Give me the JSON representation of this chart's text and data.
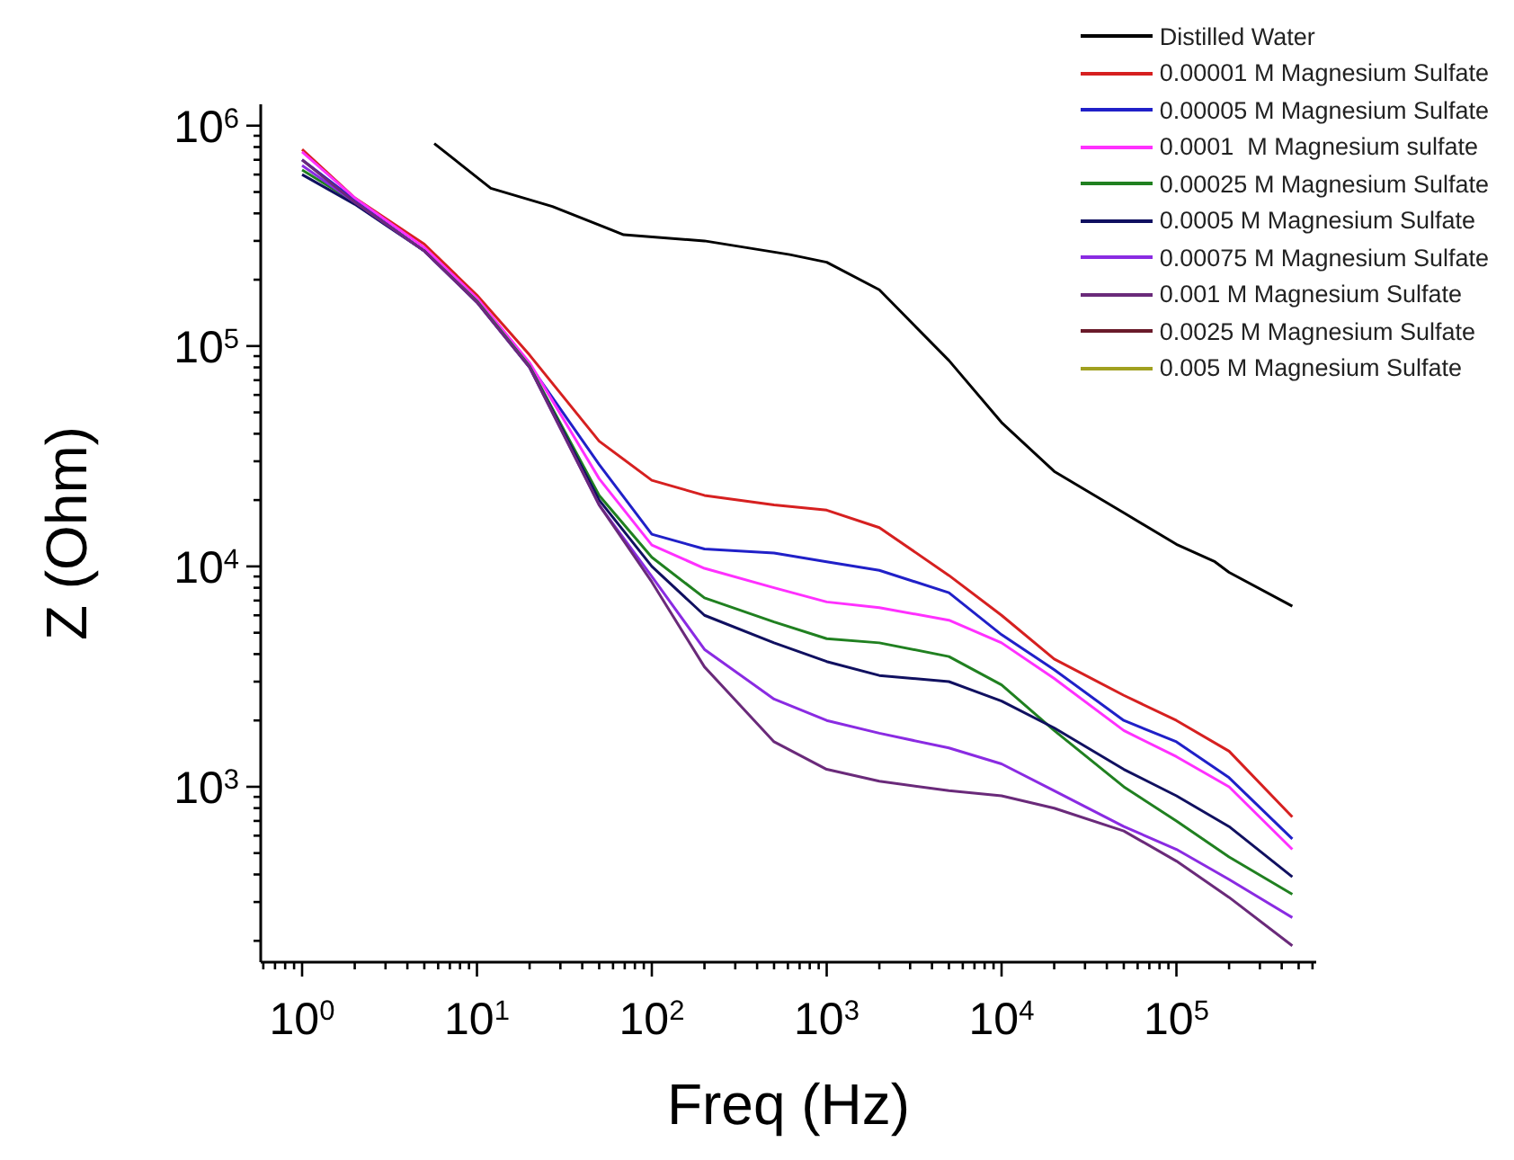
{
  "chart_data": {
    "type": "line",
    "xlabel": "Freq (Hz)",
    "ylabel": "Z (Ohm)",
    "log": "xy",
    "grid": false,
    "legend": "top right",
    "marker": "none",
    "line_style": "solid",
    "x": [
      1,
      2,
      5,
      10,
      20,
      50,
      100,
      200,
      500,
      1000,
      2000,
      5000,
      10000,
      20000,
      50000,
      100000,
      200000,
      460000
    ],
    "xlim": [
      0.58,
      630000
    ],
    "ylim": [
      160,
      1250000
    ],
    "xticks": [
      {
        "value": 0.6,
        "label": null
      },
      {
        "value": 0.7,
        "label": null
      },
      {
        "value": 0.8,
        "label": null
      },
      {
        "value": 0.9,
        "label": null
      },
      {
        "value": 1,
        "label": "10$^{0}$"
      },
      {
        "value": 2,
        "label": null
      },
      {
        "value": 3,
        "label": null
      },
      {
        "value": 4,
        "label": null
      },
      {
        "value": 5,
        "label": null
      },
      {
        "value": 6,
        "label": null
      },
      {
        "value": 7,
        "label": null
      },
      {
        "value": 8,
        "label": null
      },
      {
        "value": 9,
        "label": null
      },
      {
        "value": 10,
        "label": "10$^{1}$"
      },
      {
        "value": 20,
        "label": null
      },
      {
        "value": 30,
        "label": null
      },
      {
        "value": 40,
        "label": null
      },
      {
        "value": 50,
        "label": null
      },
      {
        "value": 60,
        "label": null
      },
      {
        "value": 70,
        "label": null
      },
      {
        "value": 80,
        "label": null
      },
      {
        "value": 90,
        "label": null
      },
      {
        "value": 100,
        "label": "10$^{2}$"
      },
      {
        "value": 200,
        "label": null
      },
      {
        "value": 300,
        "label": null
      },
      {
        "value": 400,
        "label": null
      },
      {
        "value": 500,
        "label": null
      },
      {
        "value": 600,
        "label": null
      },
      {
        "value": 700,
        "label": null
      },
      {
        "value": 800,
        "label": null
      },
      {
        "value": 900,
        "label": null
      },
      {
        "value": 1000,
        "label": "10$^{3}$"
      },
      {
        "value": 2000,
        "label": null
      },
      {
        "value": 3000,
        "label": null
      },
      {
        "value": 4000,
        "label": null
      },
      {
        "value": 5000,
        "label": null
      },
      {
        "value": 6000,
        "label": null
      },
      {
        "value": 7000,
        "label": null
      },
      {
        "value": 8000,
        "label": null
      },
      {
        "value": 9000,
        "label": null
      },
      {
        "value": 10000,
        "label": "10$^{4}$"
      },
      {
        "value": 20000,
        "label": null
      },
      {
        "value": 30000,
        "label": null
      },
      {
        "value": 40000,
        "label": null
      },
      {
        "value": 50000,
        "label": null
      },
      {
        "value": 60000,
        "label": null
      },
      {
        "value": 70000,
        "label": null
      },
      {
        "value": 80000,
        "label": null
      },
      {
        "value": 90000,
        "label": null
      },
      {
        "value": 100000,
        "label": "10$^{5}$"
      },
      {
        "value": 200000,
        "label": null
      },
      {
        "value": 300000,
        "label": null
      },
      {
        "value": 400000,
        "label": null
      },
      {
        "value": 500000,
        "label": null
      },
      {
        "value": 600000,
        "label": null
      }
    ],
    "yticks": [
      {
        "value": 200,
        "label": null
      },
      {
        "value": 300,
        "label": null
      },
      {
        "value": 400,
        "label": null
      },
      {
        "value": 500,
        "label": null
      },
      {
        "value": 600,
        "label": null
      },
      {
        "value": 700,
        "label": null
      },
      {
        "value": 800,
        "label": null
      },
      {
        "value": 900,
        "label": null
      },
      {
        "value": 1000,
        "label": "10$^{3}$"
      },
      {
        "value": 2000,
        "label": null
      },
      {
        "value": 3000,
        "label": null
      },
      {
        "value": 4000,
        "label": null
      },
      {
        "value": 5000,
        "label": null
      },
      {
        "value": 6000,
        "label": null
      },
      {
        "value": 7000,
        "label": null
      },
      {
        "value": 8000,
        "label": null
      },
      {
        "value": 9000,
        "label": null
      },
      {
        "value": 10000,
        "label": "10$^{4}$"
      },
      {
        "value": 20000,
        "label": null
      },
      {
        "value": 30000,
        "label": null
      },
      {
        "value": 40000,
        "label": null
      },
      {
        "value": 50000,
        "label": null
      },
      {
        "value": 60000,
        "label": null
      },
      {
        "value": 70000,
        "label": null
      },
      {
        "value": 80000,
        "label": null
      },
      {
        "value": 90000,
        "label": null
      },
      {
        "value": 100000,
        "label": "10$^{5}$"
      },
      {
        "value": 200000,
        "label": null
      },
      {
        "value": 300000,
        "label": null
      },
      {
        "value": 400000,
        "label": null
      },
      {
        "value": 500000,
        "label": null
      },
      {
        "value": 600000,
        "label": null
      },
      {
        "value": 700000,
        "label": null
      },
      {
        "value": 800000,
        "label": null
      },
      {
        "value": 900000,
        "label": null
      },
      {
        "value": 1000000,
        "label": "10$^{6}$"
      }
    ],
    "series": [
      {
        "name": "Distilled Water",
        "color": "#000000",
        "x": [
          5.7,
          12,
          27,
          69,
          200,
          615,
          1000,
          2000,
          5000,
          10000,
          20000,
          50000,
          100000,
          166000,
          200000,
          460000
        ],
        "values": [
          830000,
          520000,
          430000,
          320000,
          300000,
          260000,
          240000,
          180000,
          86000,
          45000,
          27000,
          17500,
          12600,
          10500,
          9400,
          6600
        ]
      },
      {
        "name": "0.00001 M Magnesium Sulfate",
        "color": "#d62020",
        "values": [
          780000,
          470000,
          290000,
          170000,
          91000,
          37000,
          24600,
          21000,
          19000,
          18000,
          15000,
          9100,
          6000,
          3800,
          2600,
          2000,
          1450,
          730
        ]
      },
      {
        "name": "0.00005 M Magnesium Sulfate",
        "color": "#2020c8",
        "values": [
          700000,
          460000,
          270000,
          160000,
          82000,
          29000,
          14000,
          12000,
          11500,
          10500,
          9600,
          7600,
          4900,
          3400,
          2000,
          1600,
          1100,
          580
        ]
      },
      {
        "name": "0.0001  M Magnesium sulfate",
        "color": "#ff30ff",
        "values": [
          760000,
          470000,
          280000,
          165000,
          84000,
          25000,
          12500,
          9800,
          8000,
          6900,
          6500,
          5700,
          4500,
          3100,
          1800,
          1370,
          1000,
          520
        ]
      },
      {
        "name": "0.00025 M Magnesium Sulfate",
        "color": "#208020",
        "values": [
          630000,
          450000,
          270000,
          160000,
          81000,
          21000,
          11000,
          7200,
          5600,
          4700,
          4500,
          3900,
          2900,
          1800,
          1000,
          700,
          480,
          325
        ]
      },
      {
        "name": "0.0005 M Magnesium Sulfate",
        "color": "#101060",
        "values": [
          600000,
          440000,
          270000,
          158000,
          80000,
          20000,
          10000,
          6000,
          4500,
          3700,
          3200,
          3000,
          2450,
          1850,
          1200,
          910,
          660,
          390
        ]
      },
      {
        "name": "0.00075 M Magnesium Sulfate",
        "color": "#8a2be2",
        "values": [
          660000,
          450000,
          270000,
          158000,
          80000,
          19000,
          9000,
          4200,
          2500,
          2000,
          1750,
          1500,
          1270,
          960,
          660,
          520,
          380,
          255
        ]
      },
      {
        "name": "0.001 M Magnesium Sulfate",
        "color": "#6a2a7a",
        "values": [
          700000,
          450000,
          270000,
          158000,
          80000,
          19000,
          8500,
          3500,
          1600,
          1200,
          1060,
          960,
          910,
          800,
          630,
          460,
          315,
          190
        ]
      },
      {
        "name": "0.0025 M Magnesium Sulfate",
        "color": "#6a1a2a",
        "values": [
          null,
          null,
          null,
          null,
          null,
          null,
          null,
          null,
          null,
          null,
          null,
          null,
          null,
          null,
          null,
          null,
          null,
          null
        ]
      },
      {
        "name": "0.005 M Magnesium Sulfate",
        "color": "#a0a020",
        "values": [
          null,
          null,
          null,
          null,
          null,
          null,
          null,
          null,
          null,
          null,
          null,
          null,
          null,
          null,
          null,
          null,
          null,
          null
        ]
      }
    ]
  }
}
